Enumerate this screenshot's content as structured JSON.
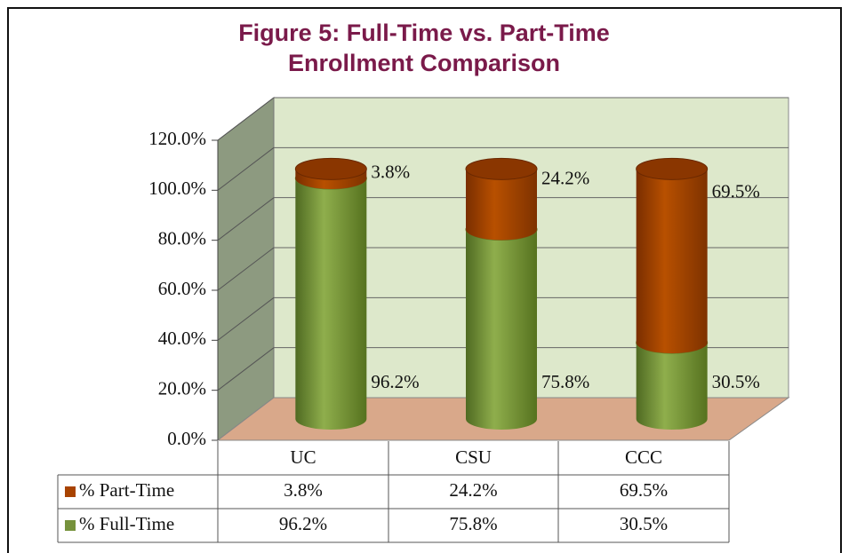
{
  "chart_data": {
    "type": "bar3d_stacked",
    "title": "Figure 5: Full-Time vs. Part-Time Enrollment Comparison",
    "categories": [
      "UC",
      "CSU",
      "CCC"
    ],
    "series": [
      {
        "name": "% Full-Time",
        "color": "#76923c",
        "values": [
          96.2,
          75.8,
          30.5
        ],
        "value_labels": [
          "96.2%",
          "75.8%",
          "30.5%"
        ]
      },
      {
        "name": "% Part-Time",
        "color": "#a84300",
        "values": [
          3.8,
          24.2,
          69.5
        ],
        "value_labels": [
          "3.8%",
          "24.2%",
          "69.5%"
        ]
      }
    ],
    "ylim": [
      0,
      120
    ],
    "yticks": [
      {
        "value": 0,
        "label": "0.0%"
      },
      {
        "value": 20,
        "label": "20.0%"
      },
      {
        "value": 40,
        "label": "40.0%"
      },
      {
        "value": 60,
        "label": "60.0%"
      },
      {
        "value": 80,
        "label": "80.0%"
      },
      {
        "value": 100,
        "label": "100.0%"
      },
      {
        "value": 120,
        "label": "120.0%"
      }
    ],
    "grid": true
  }
}
